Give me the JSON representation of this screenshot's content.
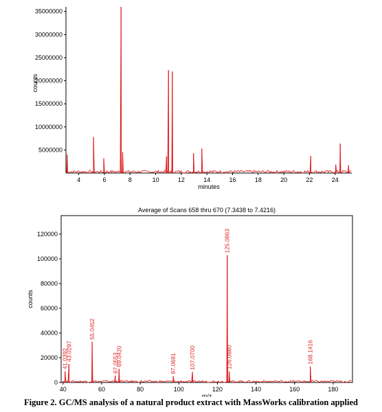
{
  "caption": "Figure 2. GC/MS analysis of a natural product extract with MassWorks calibration applied",
  "colors": {
    "trace": "#e02020",
    "axis": "#000000"
  },
  "chart_data": [
    {
      "type": "line",
      "title": "",
      "xlabel": "minutes",
      "ylabel": "counts",
      "xlim": [
        3,
        25.3
      ],
      "ylim": [
        0,
        36000000
      ],
      "x_ticks": [
        4,
        6,
        8,
        10,
        12,
        14,
        16,
        18,
        20,
        22,
        24
      ],
      "y_ticks": [
        5000000,
        10000000,
        15000000,
        20000000,
        25000000,
        30000000,
        35000000
      ],
      "peaks": [
        {
          "x": 3.1,
          "y": 4000000
        },
        {
          "x": 5.15,
          "y": 7800000
        },
        {
          "x": 5.95,
          "y": 3200000
        },
        {
          "x": 7.3,
          "y": 36000000
        },
        {
          "x": 7.42,
          "y": 4500000
        },
        {
          "x": 10.85,
          "y": 3600000
        },
        {
          "x": 11.0,
          "y": 22300000
        },
        {
          "x": 11.3,
          "y": 22000000
        },
        {
          "x": 12.95,
          "y": 4300000
        },
        {
          "x": 13.6,
          "y": 5300000
        },
        {
          "x": 22.1,
          "y": 3700000
        },
        {
          "x": 24.05,
          "y": 1800000
        },
        {
          "x": 24.4,
          "y": 6400000
        },
        {
          "x": 25.05,
          "y": 1700000
        }
      ]
    },
    {
      "type": "line",
      "title": "Average of Scans 658 thru 670 (7.3438 to 7.4216)",
      "xlabel": "m/z",
      "ylabel": "counts",
      "xlim": [
        39,
        190
      ],
      "ylim": [
        0,
        135000
      ],
      "x_ticks": [
        40,
        60,
        80,
        100,
        120,
        140,
        160,
        180
      ],
      "y_ticks": [
        0,
        20000,
        40000,
        60000,
        80000,
        100000,
        120000
      ],
      "peaks": [
        {
          "x": 41.04,
          "y": 9000,
          "label": "41.0392"
        },
        {
          "x": 43.03,
          "y": 15000,
          "label": "43.0297"
        },
        {
          "x": 55.05,
          "y": 33000,
          "label": "55.0452"
        },
        {
          "x": 67.06,
          "y": 5500,
          "label": "67.0553"
        },
        {
          "x": 69.04,
          "y": 11000,
          "label": "69.0420"
        },
        {
          "x": 97.07,
          "y": 5000,
          "label": "97.0691"
        },
        {
          "x": 107.07,
          "y": 8500,
          "label": "107.0700"
        },
        {
          "x": 125.09,
          "y": 103000,
          "label": "125.0863"
        },
        {
          "x": 126.09,
          "y": 9000,
          "label": "126.0880"
        },
        {
          "x": 168.14,
          "y": 13000,
          "label": "168.1416"
        }
      ]
    }
  ]
}
